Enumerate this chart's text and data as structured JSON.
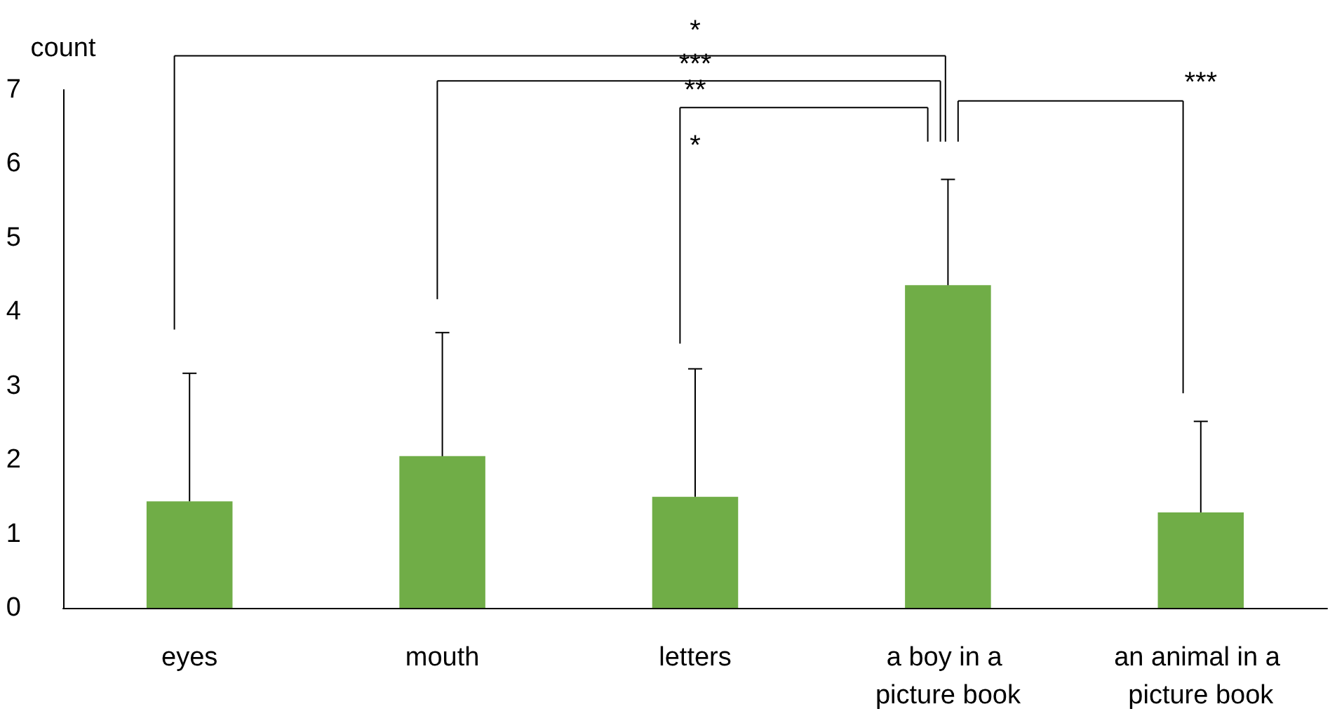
{
  "chart_data": {
    "type": "bar",
    "ylabel": "count",
    "categories": [
      "eyes",
      "mouth",
      "letters",
      "a boy in a picture book",
      "an animal in a picture book"
    ],
    "values": [
      1.44,
      2.05,
      1.5,
      4.36,
      1.29
    ],
    "errors": [
      [
        1.44,
        3.17
      ],
      [
        2.05,
        3.72
      ],
      [
        1.5,
        3.23
      ],
      [
        4.36,
        5.79
      ],
      [
        1.29,
        2.52
      ]
    ],
    "color": "#70ad47",
    "ylim": [
      0,
      7
    ],
    "yticks": [
      0,
      1,
      2,
      3,
      4,
      5,
      6,
      7
    ],
    "grid": false,
    "annotations": [
      "*",
      "***",
      "**",
      "*",
      "***"
    ]
  }
}
